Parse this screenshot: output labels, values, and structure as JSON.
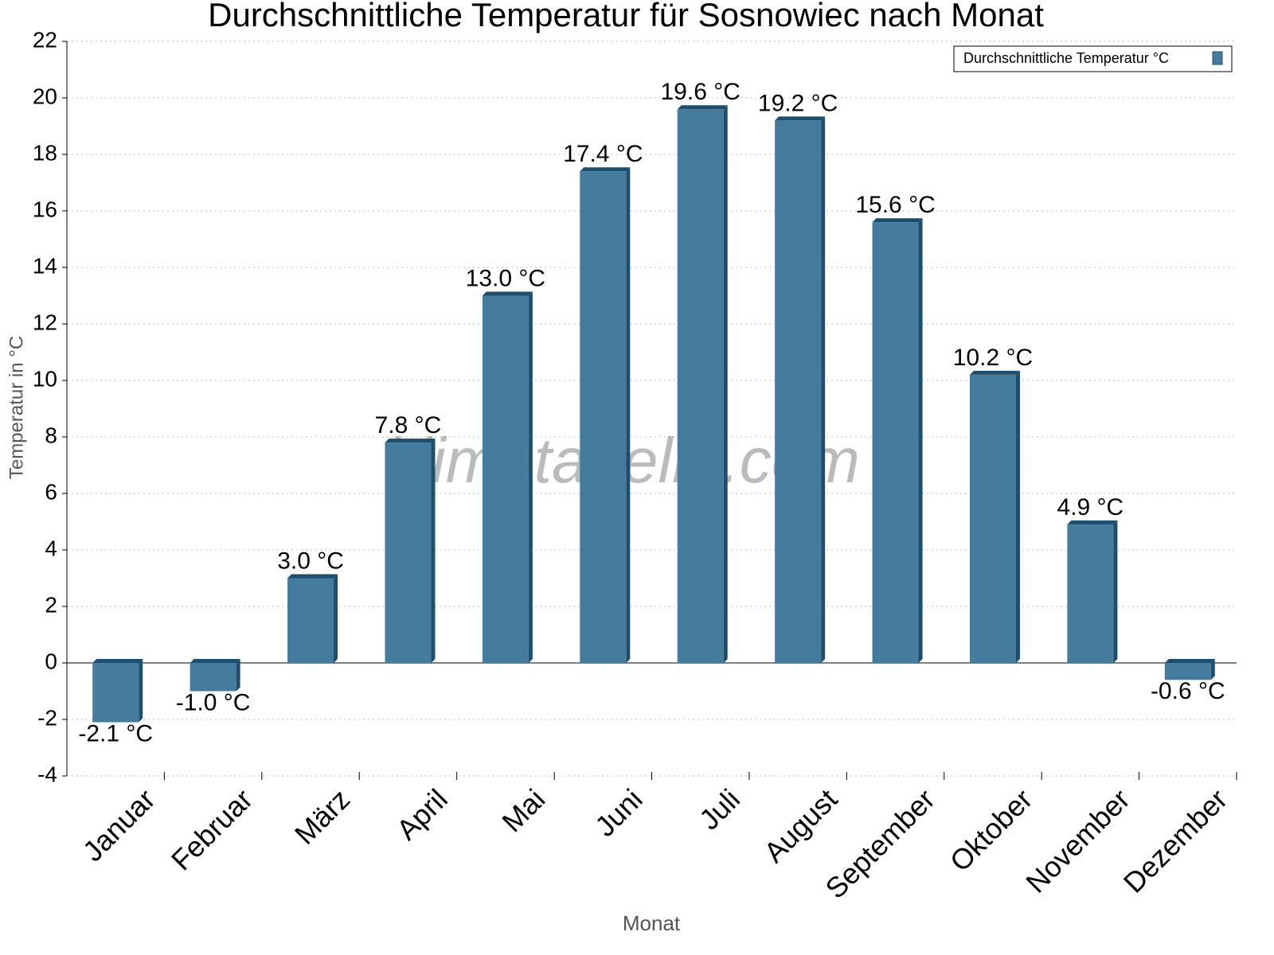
{
  "chart_data": {
    "type": "bar",
    "title": "Durchschnittliche Temperatur für Sosnowiec nach Monat",
    "watermark": "klimatabelle.com",
    "x_label": "Monat",
    "y_label": "Temperatur in °C",
    "categories": [
      "Januar",
      "Februar",
      "März",
      "April",
      "Mai",
      "Juni",
      "Juli",
      "August",
      "September",
      "Oktober",
      "November",
      "Dezember"
    ],
    "series": [
      {
        "name": "Durchschnittliche Temperatur °C",
        "color": "#457b9d",
        "side_color": "#1d4e6e",
        "values": [
          -2.1,
          -1.0,
          3.0,
          7.8,
          13.0,
          17.4,
          19.6,
          19.2,
          15.6,
          10.2,
          4.9,
          -0.6
        ],
        "value_labels": [
          "-2.1 °C",
          "-1.0 °C",
          "3.0 °C",
          "7.8 °C",
          "13.0 °C",
          "17.4 °C",
          "19.6 °C",
          "19.2 °C",
          "15.6 °C",
          "10.2 °C",
          "4.9 °C",
          "-0.6 °C"
        ]
      }
    ],
    "ylim": [
      -4,
      22
    ],
    "yticks": [
      -4,
      -2,
      0,
      2,
      4,
      6,
      8,
      10,
      12,
      14,
      16,
      18,
      20,
      22
    ],
    "grid": true,
    "legend": "upper right"
  }
}
